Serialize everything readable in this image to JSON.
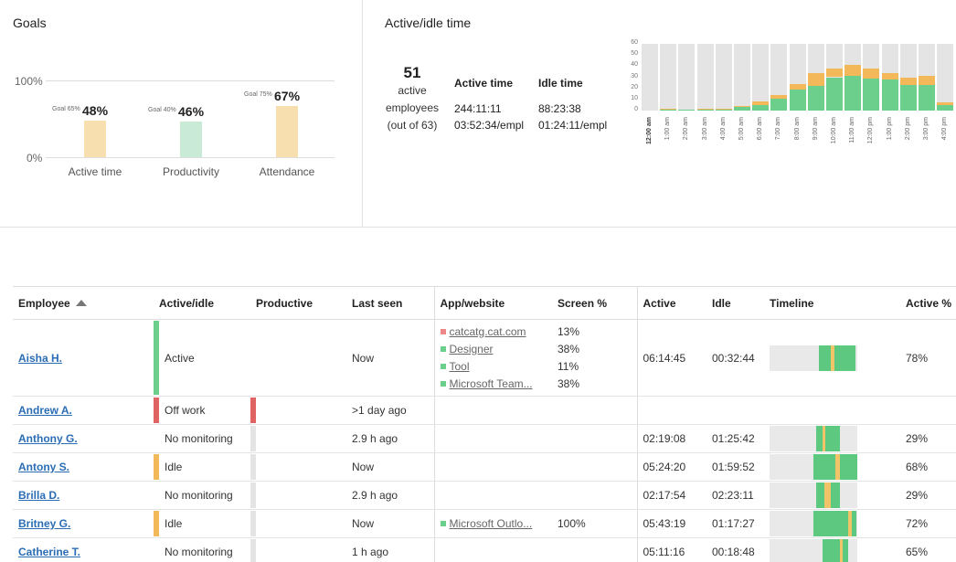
{
  "goals": {
    "title": "Goals",
    "axis": {
      "top": "100%",
      "bottom": "0%"
    },
    "items": [
      {
        "label": "Active time",
        "value": "48%",
        "goal": "Goal 65%",
        "pct": 48,
        "color": "#f7dfb0"
      },
      {
        "label": "Productivity",
        "value": "46%",
        "goal": "Goal 40%",
        "pct": 46,
        "color": "#c9ead6"
      },
      {
        "label": "Attendance",
        "value": "67%",
        "goal": "Goal 75%",
        "pct": 67,
        "color": "#f7dfb0"
      }
    ]
  },
  "active_idle": {
    "title": "Active/idle time",
    "count": "51",
    "count_lines": [
      "active",
      "employees",
      "(out of 63)"
    ],
    "active_head": "Active time",
    "active_total": "244:11:11",
    "active_per": "03:52:34/empl",
    "idle_head": "Idle time",
    "idle_total": "88:23:38",
    "idle_per": "01:24:11/empl"
  },
  "chart_data": {
    "type": "bar",
    "title": "",
    "y_ticks": [
      "60",
      "50",
      "40",
      "30",
      "20",
      "10",
      "0"
    ],
    "ylim": [
      0,
      60
    ],
    "categories": [
      "12:00 am",
      "1:00 am",
      "2:00 am",
      "3:00 am",
      "4:00 am",
      "5:00 am",
      "6:00 am",
      "7:00 am",
      "8:00 am",
      "9:00 am",
      "10:00 am",
      "11:00 am",
      "12:00 pm",
      "1:00 pm",
      "2:00 pm",
      "3:00 pm",
      "4:00 pm"
    ],
    "series": [
      {
        "values": [
          0,
          1,
          1,
          1,
          1,
          3,
          5,
          11,
          19,
          22,
          30,
          31,
          29,
          28,
          23,
          23,
          5
        ],
        "color": "#6ccf8c"
      },
      {
        "values": [
          0,
          1,
          0,
          1,
          1,
          1,
          3,
          3,
          5,
          12,
          8,
          10,
          9,
          6,
          7,
          8,
          2
        ],
        "color": "#f2b85a"
      }
    ],
    "background": "#e4e4e4"
  },
  "table": {
    "headers": {
      "employee": "Employee",
      "status": "Active/idle",
      "productive": "Productive",
      "last_seen": "Last seen",
      "app": "App/website",
      "screen": "Screen %",
      "active": "Active",
      "idle": "Idle",
      "timeline": "Timeline",
      "active_pct": "Active %"
    },
    "rows": [
      {
        "name": "Aisha H.",
        "status": "Active",
        "status_color": "#6ccf8c",
        "prod_color": "",
        "last_seen": "Now",
        "apps": [
          {
            "name": "catcatg.cat.com",
            "pct": "13%",
            "color": "#ee8888"
          },
          {
            "name": "Designer",
            "pct": "38%",
            "color": "#6ccf8c"
          },
          {
            "name": "Tool",
            "pct": "11%",
            "color": "#6ccf8c"
          },
          {
            "name": "Microsoft Team...",
            "pct": "38%",
            "color": "#6ccf8c"
          }
        ],
        "active": "06:14:45",
        "idle": "00:32:44",
        "active_pct": "78%",
        "timeline": [
          {
            "start": 0.56,
            "end": 0.72,
            "color": "#5cc880"
          },
          {
            "start": 0.7,
            "end": 0.74,
            "color": "#f2c46a"
          },
          {
            "start": 0.74,
            "end": 0.98,
            "color": "#5cc880"
          }
        ]
      },
      {
        "name": "Andrew A.",
        "status": "Off work",
        "status_color": "#e06363",
        "prod_color": "#e06363",
        "last_seen": ">1 day ago",
        "apps": [],
        "active": "",
        "idle": "",
        "active_pct": "",
        "timeline": null
      },
      {
        "name": "Anthony G.",
        "status": "No monitoring",
        "status_color": "",
        "prod_color": "#e4e4e4",
        "last_seen": "2.9 h ago",
        "apps": [],
        "active": "02:19:08",
        "idle": "01:25:42",
        "active_pct": "29%",
        "timeline": [
          {
            "start": 0.53,
            "end": 0.6,
            "color": "#5cc880"
          },
          {
            "start": 0.6,
            "end": 0.64,
            "color": "#f2c46a"
          },
          {
            "start": 0.64,
            "end": 0.8,
            "color": "#5cc880"
          }
        ]
      },
      {
        "name": "Antony S.",
        "status": "Idle",
        "status_color": "#f2b85a",
        "prod_color": "#e4e4e4",
        "last_seen": "Now",
        "apps": [],
        "active": "05:24:20",
        "idle": "01:59:52",
        "active_pct": "68%",
        "timeline": [
          {
            "start": 0.5,
            "end": 0.75,
            "color": "#5cc880"
          },
          {
            "start": 0.75,
            "end": 0.8,
            "color": "#f2c46a"
          },
          {
            "start": 0.8,
            "end": 1.0,
            "color": "#5cc880"
          }
        ]
      },
      {
        "name": "Brilla D.",
        "status": "No monitoring",
        "status_color": "",
        "prod_color": "#e4e4e4",
        "last_seen": "2.9 h ago",
        "apps": [],
        "active": "02:17:54",
        "idle": "02:23:11",
        "active_pct": "29%",
        "timeline": [
          {
            "start": 0.53,
            "end": 0.62,
            "color": "#5cc880"
          },
          {
            "start": 0.62,
            "end": 0.7,
            "color": "#f2c46a"
          },
          {
            "start": 0.7,
            "end": 0.8,
            "color": "#5cc880"
          }
        ]
      },
      {
        "name": "Britney G.",
        "status": "Idle",
        "status_color": "#f2b85a",
        "prod_color": "#e4e4e4",
        "last_seen": "Now",
        "apps": [
          {
            "name": "Microsoft Outlo...",
            "pct": "100%",
            "color": "#6ccf8c"
          }
        ],
        "active": "05:43:19",
        "idle": "01:17:27",
        "active_pct": "72%",
        "timeline": [
          {
            "start": 0.5,
            "end": 0.9,
            "color": "#5cc880"
          },
          {
            "start": 0.9,
            "end": 0.94,
            "color": "#f2c46a"
          },
          {
            "start": 0.94,
            "end": 0.99,
            "color": "#5cc880"
          }
        ]
      },
      {
        "name": "Catherine T.",
        "status": "No monitoring",
        "status_color": "",
        "prod_color": "#e4e4e4",
        "last_seen": "1 h ago",
        "apps": [],
        "active": "05:11:16",
        "idle": "00:18:48",
        "active_pct": "65%",
        "timeline": [
          {
            "start": 0.6,
            "end": 0.9,
            "color": "#5cc880"
          },
          {
            "start": 0.8,
            "end": 0.83,
            "color": "#f2c46a"
          }
        ]
      }
    ]
  }
}
